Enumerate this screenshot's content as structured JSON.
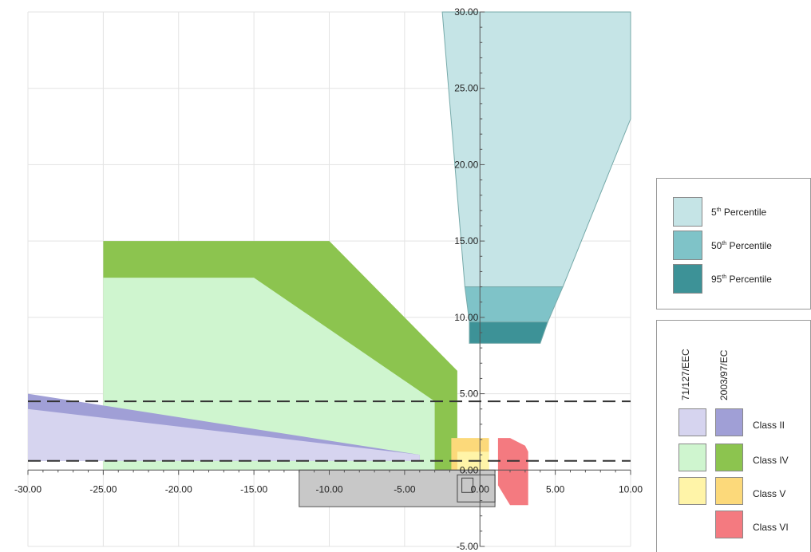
{
  "chart_data": {
    "type": "area",
    "xlim": [
      -30,
      10
    ],
    "ylim": [
      -5,
      30
    ],
    "x_ticks": [
      "-30.00",
      "-25.00",
      "-20.00",
      "-15.00",
      "-10.00",
      "-5.00",
      "0.00",
      "5.00",
      "10.00"
    ],
    "y_ticks": [
      "30.00",
      "25.00",
      "20.00",
      "15.00",
      "10.00",
      "5.00",
      "0.00",
      "-5.00"
    ],
    "x_tick_values": [
      -30,
      -25,
      -20,
      -15,
      -10,
      -5,
      0,
      5,
      10
    ],
    "y_tick_values": [
      30,
      25,
      20,
      15,
      10,
      5,
      0,
      -5
    ],
    "grid": true,
    "dashed_lines_y": [
      4.5,
      0.6
    ],
    "regions": [
      {
        "id": "pct-5th",
        "fill": "#c5e4e6",
        "points": [
          [
            -2.5,
            30
          ],
          [
            10,
            30
          ],
          [
            10,
            23
          ],
          [
            5.5,
            12
          ],
          [
            -1,
            12
          ]
        ]
      },
      {
        "id": "pct-50th",
        "fill": "#7fc3c8",
        "points": [
          [
            -1,
            12
          ],
          [
            5.5,
            12
          ],
          [
            4.5,
            9.7
          ],
          [
            -0.7,
            9.7
          ]
        ]
      },
      {
        "id": "pct-95th",
        "fill": "#3d9297",
        "points": [
          [
            -0.7,
            9.7
          ],
          [
            4.5,
            9.7
          ],
          [
            4,
            8.3
          ],
          [
            -0.7,
            8.3
          ]
        ]
      },
      {
        "id": "class-iv-2003",
        "fill": "#8cc44f",
        "points": [
          [
            -25,
            15
          ],
          [
            -10,
            15
          ],
          [
            -1.5,
            6.5
          ],
          [
            -1.5,
            0
          ],
          [
            -25,
            0
          ]
        ]
      },
      {
        "id": "class-iv-71",
        "fill": "#cff5cf",
        "points": [
          [
            -25,
            12.6
          ],
          [
            -15,
            12.6
          ],
          [
            -3,
            4.5
          ],
          [
            -3,
            0
          ],
          [
            -25,
            0
          ]
        ]
      },
      {
        "id": "class-ii-2003",
        "fill": "#a09fd6",
        "points": [
          [
            -30,
            5
          ],
          [
            -4,
            1
          ],
          [
            -4,
            0.6
          ],
          [
            -30,
            0.6
          ]
        ]
      },
      {
        "id": "class-ii-71",
        "fill": "#d6d4ef",
        "points": [
          [
            -30,
            4
          ],
          [
            -4,
            1
          ],
          [
            -4,
            0.6
          ],
          [
            -30,
            0.6
          ]
        ]
      },
      {
        "id": "class-v-2003",
        "fill": "#fcd97a",
        "points": [
          [
            -1.9,
            2.1
          ],
          [
            0.6,
            2.1
          ],
          [
            0.6,
            0
          ],
          [
            -1.9,
            0
          ]
        ]
      },
      {
        "id": "class-v-71",
        "fill": "#fff4a8",
        "points": [
          [
            -1.5,
            1.2
          ],
          [
            0.6,
            1.2
          ],
          [
            0.6,
            0
          ],
          [
            -1.5,
            0
          ]
        ]
      },
      {
        "id": "class-vi",
        "fill": "#f47a80",
        "points": [
          [
            1.2,
            2.1
          ],
          [
            2,
            2.1
          ],
          [
            3,
            1.6
          ],
          [
            3.2,
            1.2
          ],
          [
            3.2,
            -2.3
          ],
          [
            2,
            -2.3
          ],
          [
            1.2,
            -1
          ]
        ]
      },
      {
        "id": "vehicle",
        "fill": "#c8c8c8",
        "points": [
          [
            -12,
            0
          ],
          [
            1,
            0
          ],
          [
            1,
            -2.4
          ],
          [
            -12,
            -2.4
          ]
        ]
      }
    ],
    "legend": {
      "percentiles": [
        {
          "label": "5",
          "suffix": "th",
          "text": " Percentile",
          "color": "#c5e4e6"
        },
        {
          "label": "50",
          "suffix": "th",
          "text": " Percentile",
          "color": "#7fc3c8"
        },
        {
          "label": "95",
          "suffix": "th",
          "text": " Percentile",
          "color": "#3d9297"
        }
      ],
      "column_headers": [
        "71/127/EEC",
        "2003/97/EC"
      ],
      "classes": [
        {
          "label": "Class II",
          "color_71": "#d6d4ef",
          "color_2003": "#a09fd6"
        },
        {
          "label": "Class IV",
          "color_71": "#cff5cf",
          "color_2003": "#8cc44f"
        },
        {
          "label": "Class V",
          "color_71": "#fff4a8",
          "color_2003": "#fcd97a"
        },
        {
          "label": "Class VI",
          "color_71": "",
          "color_2003": "#f47a80"
        }
      ]
    }
  }
}
